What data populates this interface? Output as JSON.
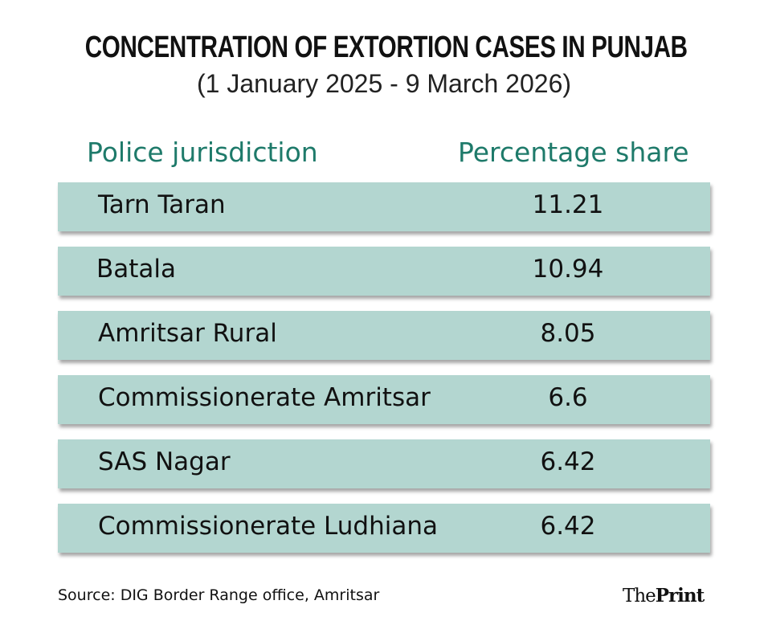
{
  "title": "CONCENTRATION OF EXTORTION CASES IN PUNJAB",
  "subtitle": "(1 January 2025 -  9 March 2026)",
  "colors": {
    "header_text": "#1e7a6a",
    "row_bg": "#b3d6d0"
  },
  "chart_data": {
    "type": "table",
    "title": "CONCENTRATION OF EXTORTION CASES IN PUNJAB",
    "subtitle": "(1 January 2025 -  9 March 2026)",
    "columns": [
      "Police jurisdiction",
      "Percentage share"
    ],
    "rows": [
      [
        "Tarn Taran",
        "11.21"
      ],
      [
        "Batala",
        "10.94"
      ],
      [
        "Amritsar Rural",
        "8.05"
      ],
      [
        "Commissionerate Amritsar",
        "6.6"
      ],
      [
        "SAS Nagar",
        "6.42"
      ],
      [
        "Commissionerate Ludhiana",
        "6.42"
      ]
    ]
  },
  "source": "Source: DIG Border Range office, Amritsar",
  "logo": {
    "part1": "The",
    "part2": "Print"
  }
}
